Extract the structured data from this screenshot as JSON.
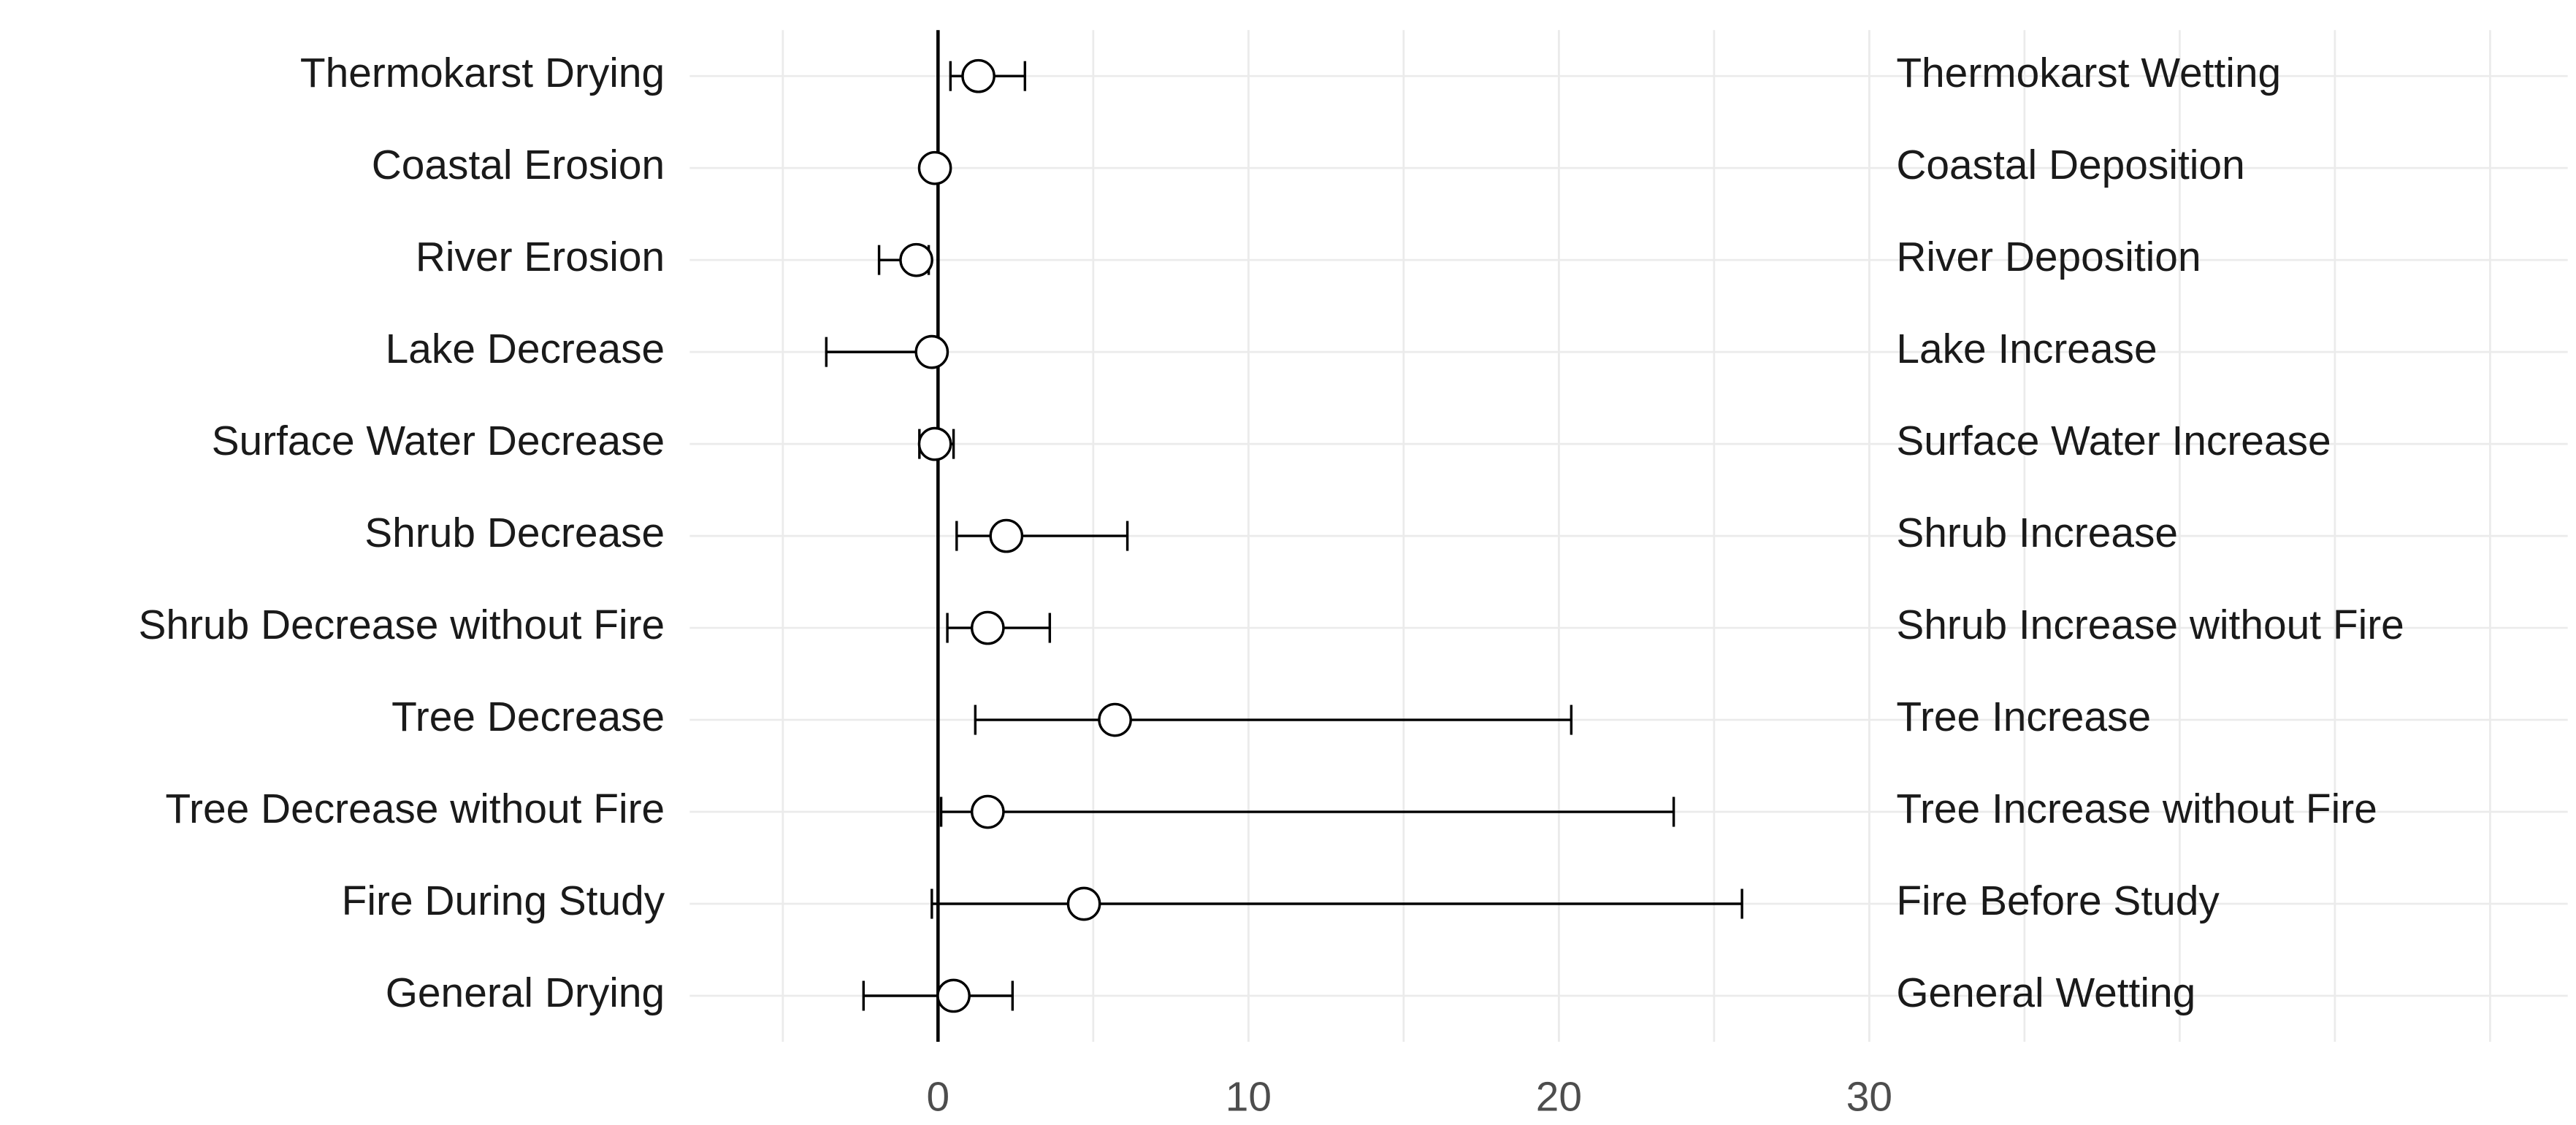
{
  "chart_data": {
    "type": "errorbar",
    "categories": [
      "Thermokarst Drying",
      "Coastal Erosion",
      "River Erosion",
      "Lake Decrease",
      "Surface Water Decrease",
      "Shrub Decrease",
      "Shrub Decrease without Fire",
      "Tree Decrease",
      "Tree Decrease without Fire",
      "Fire During Study",
      "General Drying"
    ],
    "right_labels": [
      "Thermokarst Wetting",
      "Coastal Deposition",
      "River Deposition",
      "Lake Increase",
      "Surface Water Increase",
      "Shrub Increase",
      "Shrub Increase without Fire",
      "Tree Increase",
      "Tree Increase without Fire",
      "Fire Before Study",
      "General Wetting"
    ],
    "values": [
      1.3,
      -0.1,
      -0.7,
      -0.2,
      -0.1,
      2.2,
      1.6,
      5.7,
      1.6,
      4.7,
      0.5
    ],
    "lower": [
      0.4,
      -0.3,
      -1.9,
      -3.6,
      -0.6,
      0.6,
      0.3,
      1.2,
      0.1,
      -0.2,
      -2.4
    ],
    "upper": [
      2.8,
      0.1,
      -0.3,
      0,
      0.5,
      6.1,
      3.6,
      20.4,
      23.7,
      25.9,
      2.4
    ],
    "xlim": [
      -8,
      52.5
    ],
    "xticks": [
      0,
      10,
      20,
      30
    ],
    "grid_x": [
      -5,
      5,
      10,
      15,
      20,
      25,
      30,
      35,
      40,
      45,
      50
    ],
    "vline": 0,
    "marker_fill": "#ffffff",
    "marker_stroke": "#000000",
    "grid_color": "#ebebeb"
  }
}
